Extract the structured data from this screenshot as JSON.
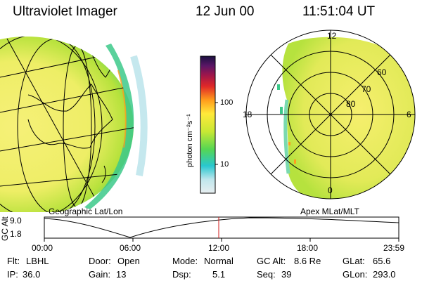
{
  "header": {
    "title": "Ultraviolet Imager",
    "date": "12 Jun 00",
    "time": "11:51:04 UT"
  },
  "colorbar": {
    "unit_label": "photon cm⁻²s⁻¹",
    "ticks": [
      "100",
      "10"
    ],
    "scale": "log",
    "stops": [
      "#e8eef0",
      "#bfe6ec",
      "#29c7cf",
      "#55d653",
      "#c8e834",
      "#ffe93a",
      "#ff9c1c",
      "#e02828",
      "#a0164a",
      "#5a1666",
      "#1a1040"
    ]
  },
  "left_panel": {
    "caption": "Geographic Lat/Lon"
  },
  "right_panel": {
    "caption": "Apex MLat/MLT",
    "mlt_labels": [
      "12",
      "18",
      "6",
      "0"
    ],
    "lat_labels": [
      "60",
      "70",
      "80"
    ]
  },
  "altitude_plot": {
    "ylabel": "GC Alt",
    "ytick_high": "9.0",
    "ytick_low": "1.8",
    "xticks": [
      "00:00",
      "06:00",
      "12:00",
      "18:00",
      "23:59"
    ],
    "marker_time": "12:00"
  },
  "info": {
    "flt_label": "Flt:",
    "flt_value": "LBHL",
    "door_label": "Door:",
    "door_value": "Open",
    "mode_label": "Mode:",
    "mode_value": "Normal",
    "gcalt_label": "GC Alt:",
    "gcalt_value": "8.6 Re",
    "glat_label": "GLat:",
    "glat_value": "65.6",
    "ip_label": "IP:",
    "ip_value": "36.0",
    "gain_label": "Gain:",
    "gain_value": "13",
    "dsp_label": "Dsp:",
    "dsp_value": "5.1",
    "seq_label": "Seq:",
    "seq_value": "39",
    "glon_label": "GLon:",
    "glon_value": "293.0"
  },
  "colors": {
    "marker": "#d01818",
    "grid": "#000000"
  }
}
